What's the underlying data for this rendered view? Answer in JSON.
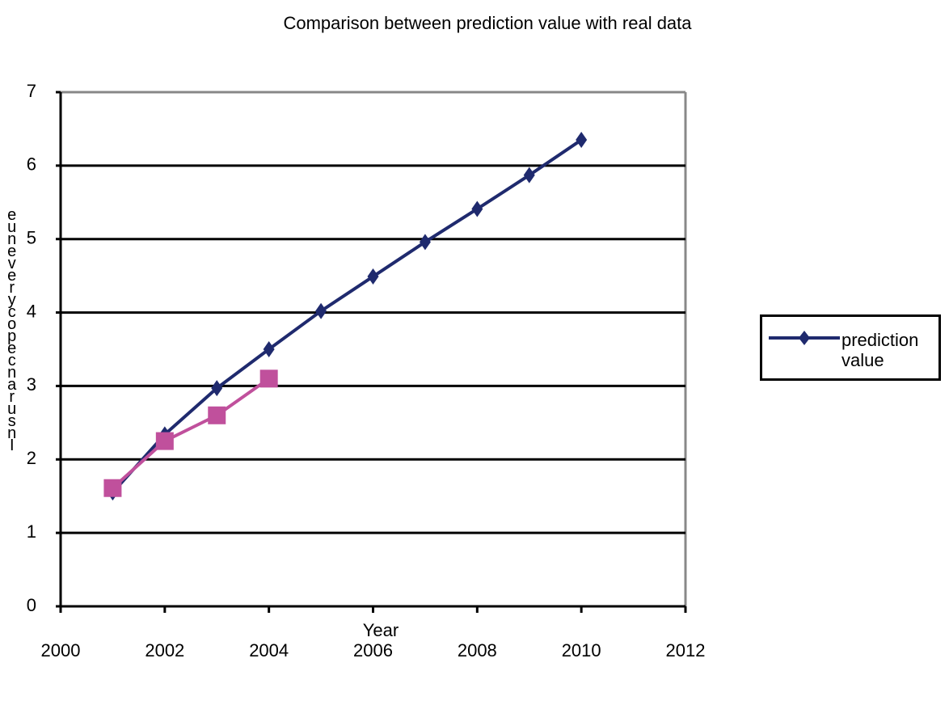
{
  "chart_data": {
    "type": "line",
    "title": "Comparison between prediction value with real data",
    "xlabel": "Year",
    "ylabel": "euneverycopecnarusnI",
    "x": [
      2001,
      2002,
      2003,
      2004,
      2005,
      2006,
      2007,
      2008,
      2009,
      2010
    ],
    "series": [
      {
        "name": "prediction value",
        "color": "#1f2a6e",
        "marker": "diamond",
        "values": [
          1.55,
          2.34,
          2.97,
          3.5,
          4.02,
          4.49,
          4.96,
          5.41,
          5.87,
          6.35
        ]
      },
      {
        "color": "#c0509c",
        "marker": "square",
        "values": [
          1.61,
          2.25,
          2.6,
          3.1,
          null,
          null,
          null,
          null,
          null,
          null
        ]
      }
    ],
    "xlim": [
      2000,
      2012
    ],
    "xticks": [
      2000,
      2002,
      2004,
      2006,
      2008,
      2010,
      2012
    ],
    "ylim": [
      0,
      7
    ],
    "yticks": [
      0,
      1,
      2,
      3,
      4,
      5,
      6,
      7
    ],
    "grid": true,
    "legend": "right"
  }
}
